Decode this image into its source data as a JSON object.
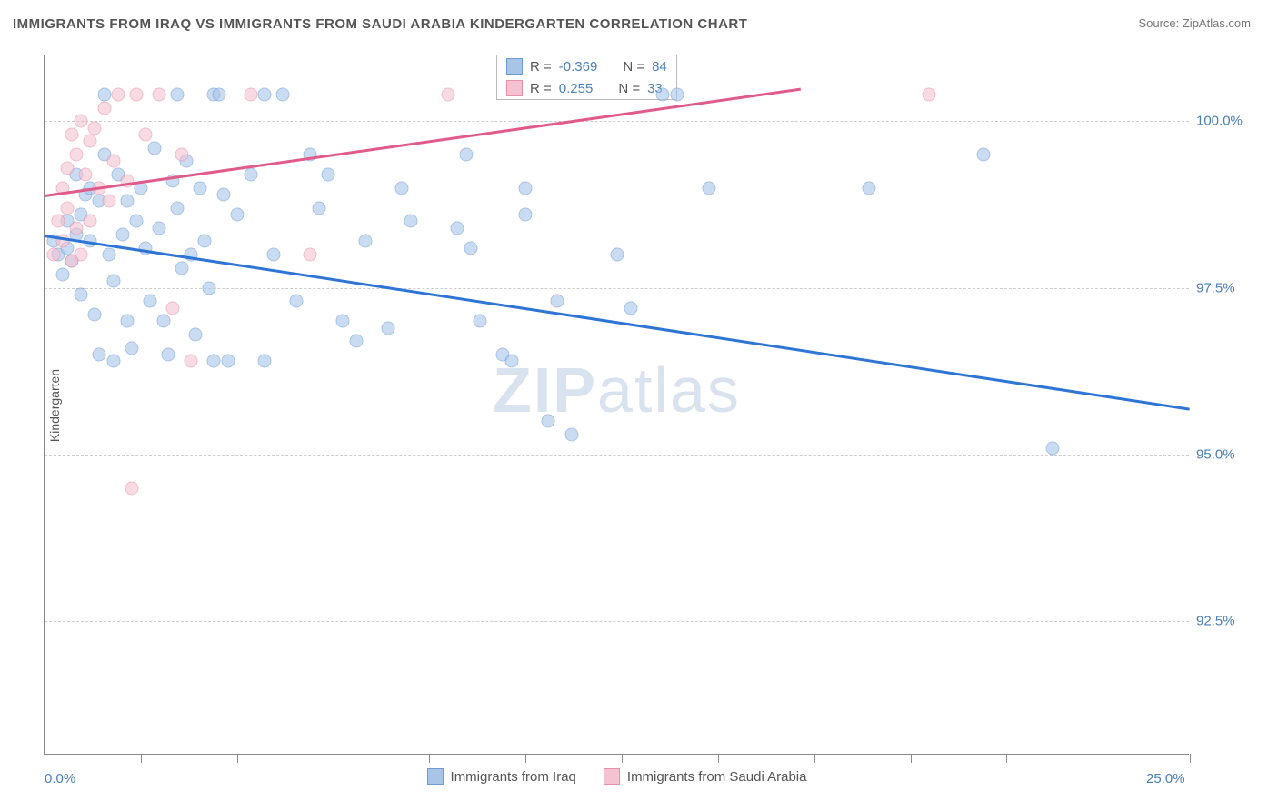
{
  "title": "IMMIGRANTS FROM IRAQ VS IMMIGRANTS FROM SAUDI ARABIA KINDERGARTEN CORRELATION CHART",
  "source_label": "Source: ",
  "source_name": "ZipAtlas.com",
  "ylabel": "Kindergarten",
  "watermark_bold": "ZIP",
  "watermark_light": "atlas",
  "chart": {
    "type": "scatter",
    "background_color": "#ffffff",
    "grid_color": "#cccccc",
    "axis_color": "#888888",
    "xlim": [
      0,
      25
    ],
    "ylim": [
      90.5,
      101
    ],
    "x_tick_positions": [
      0,
      2.1,
      4.2,
      6.3,
      8.4,
      10.5,
      12.6,
      14.7,
      16.8,
      18.9,
      21.0,
      23.1,
      25.0
    ],
    "x_tick_labels": {
      "0": "0.0%",
      "25": "25.0%"
    },
    "y_grid": [
      92.5,
      95.0,
      97.5,
      100.0
    ],
    "y_tick_labels": [
      "92.5%",
      "95.0%",
      "97.5%",
      "100.0%"
    ],
    "label_fontsize": 15,
    "label_color": "#4a7ebb",
    "marker_size": 15,
    "marker_opacity": 0.6,
    "trend_width": 2.5
  },
  "series": [
    {
      "name": "Immigrants from Iraq",
      "fill_color": "#a8c5e8",
      "stroke_color": "#6d9bd4",
      "line_color": "#2e75d6",
      "R_label": "R = ",
      "R": "-0.369",
      "N_label": "N = ",
      "N": "84",
      "trend": {
        "x1": 0,
        "y1": 98.3,
        "x2": 25,
        "y2": 95.7
      },
      "points": [
        [
          0.2,
          98.2
        ],
        [
          0.3,
          98.0
        ],
        [
          0.4,
          97.7
        ],
        [
          0.5,
          98.5
        ],
        [
          0.5,
          98.1
        ],
        [
          0.6,
          97.9
        ],
        [
          0.7,
          99.2
        ],
        [
          0.7,
          98.3
        ],
        [
          0.8,
          98.6
        ],
        [
          0.8,
          97.4
        ],
        [
          0.9,
          98.9
        ],
        [
          1.0,
          98.2
        ],
        [
          1.0,
          99.0
        ],
        [
          1.1,
          97.1
        ],
        [
          1.2,
          96.5
        ],
        [
          1.2,
          98.8
        ],
        [
          1.3,
          99.5
        ],
        [
          1.4,
          98.0
        ],
        [
          1.5,
          97.6
        ],
        [
          1.5,
          96.4
        ],
        [
          1.6,
          99.2
        ],
        [
          1.7,
          98.3
        ],
        [
          1.8,
          98.8
        ],
        [
          1.8,
          97.0
        ],
        [
          1.9,
          96.6
        ],
        [
          2.0,
          98.5
        ],
        [
          2.1,
          99.0
        ],
        [
          2.2,
          98.1
        ],
        [
          2.3,
          97.3
        ],
        [
          2.4,
          99.6
        ],
        [
          2.5,
          98.4
        ],
        [
          2.6,
          97.0
        ],
        [
          2.7,
          96.5
        ],
        [
          2.8,
          99.1
        ],
        [
          2.9,
          98.7
        ],
        [
          3.0,
          97.8
        ],
        [
          3.1,
          99.4
        ],
        [
          3.2,
          98.0
        ],
        [
          3.3,
          96.8
        ],
        [
          3.4,
          99.0
        ],
        [
          3.5,
          98.2
        ],
        [
          3.6,
          97.5
        ],
        [
          3.7,
          100.4
        ],
        [
          3.8,
          100.4
        ],
        [
          3.9,
          98.9
        ],
        [
          4.0,
          96.4
        ],
        [
          4.2,
          98.6
        ],
        [
          4.5,
          99.2
        ],
        [
          4.8,
          100.4
        ],
        [
          5.0,
          98.0
        ],
        [
          5.2,
          100.4
        ],
        [
          5.5,
          97.3
        ],
        [
          5.8,
          99.5
        ],
        [
          6.0,
          98.7
        ],
        [
          6.2,
          99.2
        ],
        [
          6.5,
          97.0
        ],
        [
          6.8,
          96.7
        ],
        [
          7.0,
          98.2
        ],
        [
          7.5,
          96.9
        ],
        [
          7.8,
          99.0
        ],
        [
          8.0,
          98.5
        ],
        [
          9.0,
          98.4
        ],
        [
          9.2,
          99.5
        ],
        [
          9.3,
          98.1
        ],
        [
          9.5,
          97.0
        ],
        [
          10.0,
          96.5
        ],
        [
          10.2,
          96.4
        ],
        [
          10.5,
          98.6
        ],
        [
          10.5,
          99.0
        ],
        [
          11.0,
          95.5
        ],
        [
          11.2,
          97.3
        ],
        [
          11.5,
          95.3
        ],
        [
          12.5,
          98.0
        ],
        [
          12.8,
          97.2
        ],
        [
          13.5,
          100.4
        ],
        [
          13.8,
          100.4
        ],
        [
          14.5,
          99.0
        ],
        [
          18.0,
          99.0
        ],
        [
          20.5,
          99.5
        ],
        [
          22.0,
          95.1
        ],
        [
          3.7,
          96.4
        ],
        [
          4.8,
          96.4
        ],
        [
          1.3,
          100.4
        ],
        [
          2.9,
          100.4
        ]
      ]
    },
    {
      "name": "Immigrants from Saudi Arabia",
      "fill_color": "#f4c2d0",
      "stroke_color": "#e890ab",
      "line_color": "#e05a8a",
      "R_label": "R = ",
      "R": " 0.255",
      "N_label": "N = ",
      "N": "33",
      "trend": {
        "x1": 0,
        "y1": 98.9,
        "x2": 16.5,
        "y2": 100.5
      },
      "points": [
        [
          0.2,
          98.0
        ],
        [
          0.3,
          98.5
        ],
        [
          0.4,
          99.0
        ],
        [
          0.4,
          98.2
        ],
        [
          0.5,
          99.3
        ],
        [
          0.5,
          98.7
        ],
        [
          0.6,
          97.9
        ],
        [
          0.6,
          99.8
        ],
        [
          0.7,
          98.4
        ],
        [
          0.7,
          99.5
        ],
        [
          0.8,
          100.0
        ],
        [
          0.8,
          98.0
        ],
        [
          0.9,
          99.2
        ],
        [
          1.0,
          99.7
        ],
        [
          1.0,
          98.5
        ],
        [
          1.1,
          99.9
        ],
        [
          1.2,
          99.0
        ],
        [
          1.3,
          100.2
        ],
        [
          1.4,
          98.8
        ],
        [
          1.5,
          99.4
        ],
        [
          1.6,
          100.4
        ],
        [
          1.8,
          99.1
        ],
        [
          1.9,
          94.5
        ],
        [
          2.0,
          100.4
        ],
        [
          2.2,
          99.8
        ],
        [
          2.5,
          100.4
        ],
        [
          2.8,
          97.2
        ],
        [
          3.0,
          99.5
        ],
        [
          3.2,
          96.4
        ],
        [
          4.5,
          100.4
        ],
        [
          5.8,
          98.0
        ],
        [
          8.8,
          100.4
        ],
        [
          19.3,
          100.4
        ]
      ]
    }
  ],
  "bottom_legend": [
    {
      "swatch_fill": "#a8c5e8",
      "swatch_stroke": "#6d9bd4",
      "label": "Immigrants from Iraq"
    },
    {
      "swatch_fill": "#f4c2d0",
      "swatch_stroke": "#e890ab",
      "label": "Immigrants from Saudi Arabia"
    }
  ]
}
